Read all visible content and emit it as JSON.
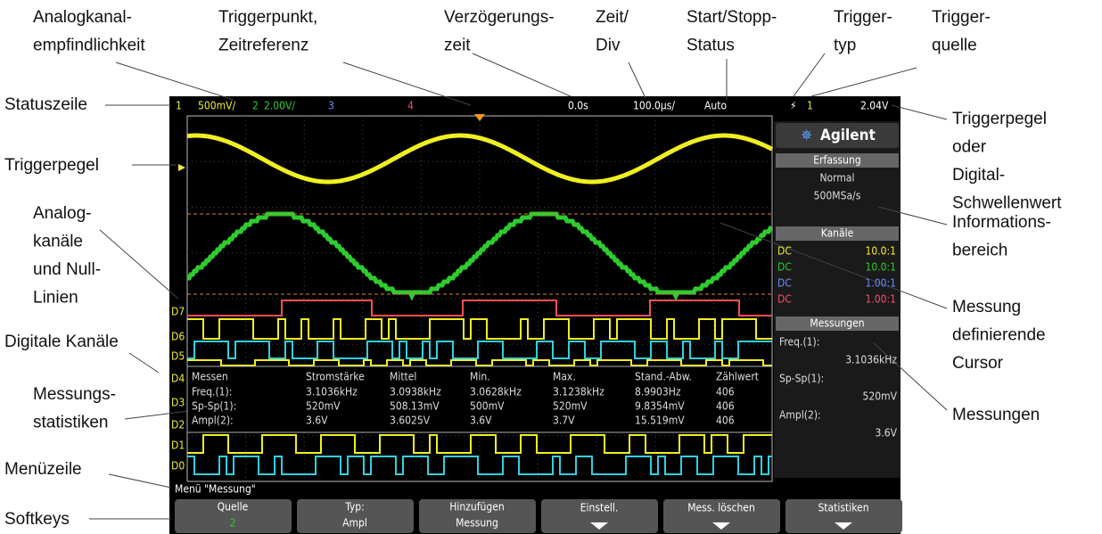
{
  "callouts": [
    {
      "lines": [
        "Analogkanal-",
        "empfindlichkeit"
      ]
    },
    {
      "lines": [
        "Triggerpunkt,",
        "Zeitreferenz"
      ]
    },
    {
      "lines": [
        "Verzögerungs-",
        "zeit"
      ]
    },
    {
      "lines": [
        "Zeit/",
        "Div"
      ]
    },
    {
      "lines": [
        "Start/Stopp-",
        "Status"
      ]
    },
    {
      "lines": [
        "Trigger-",
        "typ"
      ]
    },
    {
      "lines": [
        "Trigger-",
        "quelle"
      ]
    },
    {
      "lines": [
        "Statuszeile"
      ]
    },
    {
      "lines": [
        "Triggerpegel"
      ]
    },
    {
      "lines": [
        "Analog-",
        "kanäle",
        "und Null-",
        "Linien"
      ]
    },
    {
      "lines": [
        "Digitale Kanäle"
      ]
    },
    {
      "lines": [
        "Messungs-",
        "statistiken"
      ]
    },
    {
      "lines": [
        "Menüzeile"
      ]
    },
    {
      "lines": [
        "Softkeys"
      ]
    },
    {
      "lines": [
        "Triggerpegel",
        "oder",
        "Digital-",
        "Schwellenwert"
      ]
    },
    {
      "lines": [
        "Informations-",
        "bereich"
      ]
    },
    {
      "lines": [
        "Messung",
        "definierende",
        "Cursor"
      ]
    },
    {
      "lines": [
        "Messungen"
      ]
    }
  ],
  "status_bar": {
    "ch1": "1",
    "ch1_scale": "500mV/",
    "ch2": "2",
    "ch2_scale": "2.00V/",
    "ch3": "3",
    "ch4": "4",
    "delay": "0.0s",
    "timebase": "100.0µs/",
    "run_state": "Auto",
    "trigger_source": "1",
    "trigger_level": "2.04V"
  },
  "info_panel": {
    "brand": "Agilent",
    "acquisition": {
      "title": "Erfassung",
      "mode": "Normal",
      "rate": "500MSa/s"
    },
    "channels": {
      "title": "Kanäle",
      "rows": [
        [
          "DC",
          "10.0:1"
        ],
        [
          "DC",
          "10.0:1"
        ],
        [
          "DC",
          "1.00:1"
        ],
        [
          "DC",
          "1.00:1"
        ]
      ]
    },
    "measurements": {
      "title": "Messungen",
      "items": [
        {
          "label": "Freq.(1):",
          "value": "3.1036kHz"
        },
        {
          "label": "Sp-Sp(1):",
          "value": "520mV"
        },
        {
          "label": "Ampl(2):",
          "value": "3.6V"
        }
      ]
    }
  },
  "statistics": {
    "header": [
      "Messen",
      "Stromstärke",
      "Mittel",
      "Min.",
      "Max.",
      "Stand.-Abw.",
      "Zählwert"
    ],
    "rows": [
      [
        "Freq.(1):",
        "3.1036kHz",
        "3.0938kHz",
        "3.0628kHz",
        "3.1238kHz",
        "8.9903Hz",
        "406"
      ],
      [
        "Sp-Sp(1):",
        "520mV",
        "508.13mV",
        "500mV",
        "520mV",
        "9.8354mV",
        "406"
      ],
      [
        "Ampl(2):",
        "3.6V",
        "3.6025V",
        "3.6V",
        "3.7V",
        "15.519mV",
        "406"
      ]
    ]
  },
  "digital_labels": [
    "D7",
    "D6",
    "D5",
    "D4",
    "D3",
    "D2",
    "D1",
    "D0"
  ],
  "menu_line": "Menü \"Messung\"",
  "softkeys": [
    {
      "lines": [
        "Quelle",
        "2"
      ]
    },
    {
      "lines": [
        "Typ:",
        "Ampl"
      ]
    },
    {
      "lines": [
        "Hinzufügen",
        "Messung"
      ]
    },
    {
      "lines": [
        "Einstell."
      ]
    },
    {
      "lines": [
        "Mess. löschen"
      ]
    },
    {
      "lines": [
        "Statistiken"
      ]
    }
  ]
}
